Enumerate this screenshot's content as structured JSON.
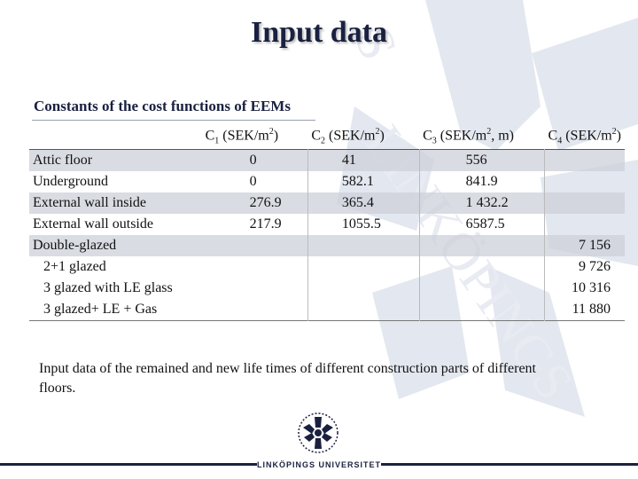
{
  "title": "Input data",
  "subtitle": "Constants of the cost functions of EEMs",
  "table": {
    "headers": [
      {
        "prefix": "C",
        "index": "1",
        "unit": " (SEK/m",
        "exp": "2",
        "close": ")"
      },
      {
        "prefix": "C",
        "index": "2",
        "unit": " (SEK/m",
        "exp": "2",
        "close": ")"
      },
      {
        "prefix": "C",
        "index": "3",
        "unit": " (SEK/m",
        "exp": "2",
        "close": ", m)"
      },
      {
        "prefix": "C",
        "index": "4",
        "unit": " (SEK/m",
        "exp": "2",
        "close": ")"
      }
    ],
    "rows": [
      {
        "label": "Attic floor",
        "c1": "0",
        "c2": "41",
        "c3": "556",
        "c4": ""
      },
      {
        "label": "Underground",
        "c1": "0",
        "c2": "582.1",
        "c3": "841.9",
        "c4": ""
      },
      {
        "label": "External wall inside",
        "c1": "276.9",
        "c2": "365.4",
        "c3": "1 432.2",
        "c4": ""
      },
      {
        "label": "External wall outside",
        "c1": "217.9",
        "c2": "1055.5",
        "c3": "6587.5",
        "c4": ""
      },
      {
        "label": "Double-glazed",
        "c1": "",
        "c2": "",
        "c3": "",
        "c4": "7 156"
      },
      {
        "label": "2+1 glazed",
        "c1": "",
        "c2": "",
        "c3": "",
        "c4": "9 726"
      },
      {
        "label": "3 glazed with LE glass",
        "c1": "",
        "c2": "",
        "c3": "",
        "c4": "10 316"
      },
      {
        "label": "3 glazed+ LE + Gas",
        "c1": "",
        "c2": "",
        "c3": "",
        "c4": "11 880"
      }
    ]
  },
  "note": "Input data of the remained and new life times of different construction parts of different floors.",
  "footer": {
    "university": "LINKÖPINGS UNIVERSITET"
  },
  "colors": {
    "title": "#1a2140",
    "shade": "#cdd0da",
    "watermark": "#dfe3ec"
  }
}
